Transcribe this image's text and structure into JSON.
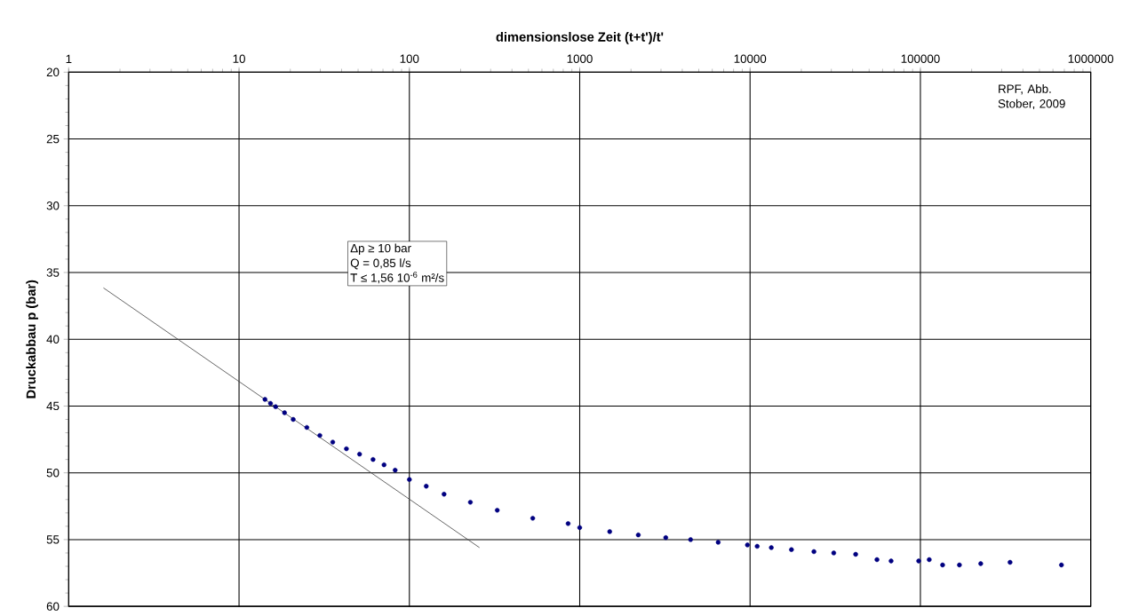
{
  "chart_data": {
    "type": "scatter",
    "xlabel": "dimensionslose Zeit (t+t')/t'",
    "ylabel": "Druckabbau p (bar)",
    "log": "x",
    "grid": true,
    "xlim": [
      1,
      1000000
    ],
    "xticks": [
      1,
      10,
      100,
      1000,
      10000,
      100000,
      1000000
    ],
    "ylim": [
      60,
      20
    ],
    "yticks": [
      20,
      25,
      30,
      35,
      40,
      45,
      50,
      55,
      60
    ],
    "annotations": [
      "Δp ≥ 10 bar",
      "Q = 0,85 l/s",
      "T ≤ 1,56 10$^{-6}$ m²/s",
      "RPF, Abb. Stober, 2009"
    ],
    "series": [
      {
        "marker": "circle",
        "color": "#000080",
        "x": [
          14.2,
          15.3,
          16.4,
          18.5,
          20.8,
          25,
          29.8,
          35.5,
          42.7,
          51,
          61.2,
          71,
          82.5,
          100,
          125.6,
          159.8,
          228,
          328,
          530,
          855,
          1000,
          1500,
          2207,
          3200,
          4477,
          6500,
          9650,
          11010,
          13330,
          17500,
          23710,
          31000,
          41690,
          55590,
          67300,
          97700,
          112700,
          135000,
          169500,
          226000,
          336000,
          673000
        ],
        "values": [
          44.5,
          44.8,
          45.05,
          45.5,
          46.0,
          46.6,
          47.2,
          47.7,
          48.2,
          48.6,
          49.0,
          49.4,
          49.8,
          50.5,
          51.0,
          51.6,
          52.2,
          52.8,
          53.4,
          53.8,
          54.1,
          54.4,
          54.65,
          54.85,
          55.0,
          55.2,
          55.4,
          55.5,
          55.6,
          55.75,
          55.9,
          56.0,
          56.1,
          56.5,
          56.6,
          56.6,
          56.5,
          56.9,
          56.9,
          56.8,
          56.7,
          56.9
        ]
      },
      {
        "type": "line",
        "marker": "none",
        "color": "#404040",
        "x": [
          1.6,
          258
        ],
        "values": [
          36.15,
          55.6
        ]
      }
    ]
  }
}
